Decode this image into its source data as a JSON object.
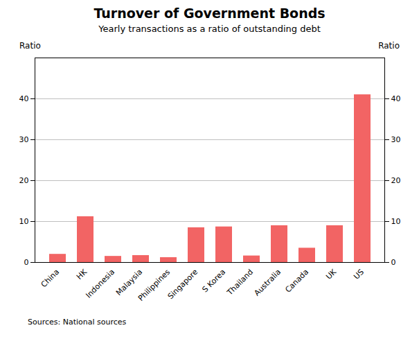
{
  "chart_data": {
    "type": "bar",
    "title": "Turnover of Government Bonds",
    "subtitle": "Yearly transactions as a ratio of outstanding debt",
    "categories": [
      "China",
      "HK",
      "Indonesia",
      "Malaysia",
      "Philippines",
      "Singapore",
      "S Korea",
      "Thailand",
      "Australia",
      "Canada",
      "UK",
      "US"
    ],
    "values": [
      2.0,
      11.2,
      1.5,
      1.7,
      1.2,
      8.5,
      8.7,
      1.6,
      9.0,
      3.5,
      9.0,
      41.0
    ],
    "color": "#f26464",
    "ylim": [
      0,
      50
    ],
    "yticks": [
      0,
      10,
      20,
      30,
      40
    ],
    "y2lim": [
      0,
      50
    ],
    "y2ticks": [
      0,
      10,
      20,
      30,
      40
    ],
    "ylabel": "Ratio",
    "y2label": "Ratio",
    "source": "Sources: National sources",
    "grid": true
  }
}
